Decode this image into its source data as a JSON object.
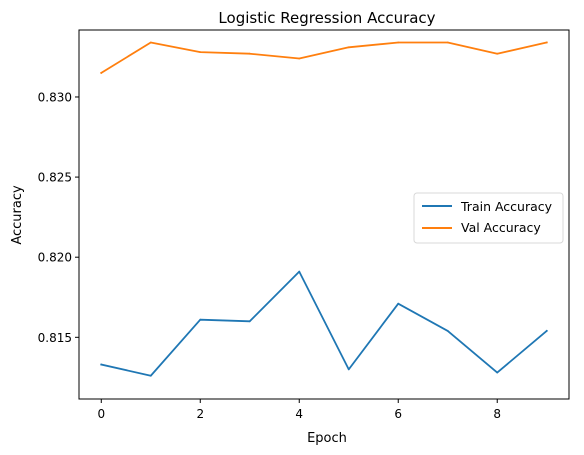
{
  "chart_data": {
    "type": "line",
    "title": "Logistic Regression Accuracy",
    "xlabel": "Epoch",
    "ylabel": "Accuracy",
    "x": [
      0,
      1,
      2,
      3,
      4,
      5,
      6,
      7,
      8,
      9
    ],
    "xlim": [
      -0.45,
      9.45
    ],
    "ylim": [
      0.81115,
      0.83418
    ],
    "xticks": [
      0,
      2,
      4,
      6,
      8
    ],
    "xtick_labels": [
      "0",
      "2",
      "4",
      "6",
      "8"
    ],
    "yticks": [
      0.815,
      0.82,
      0.825,
      0.83
    ],
    "ytick_labels": [
      "0.815",
      "0.820",
      "0.825",
      "0.830"
    ],
    "grid": false,
    "legend_position": "center-right",
    "series": [
      {
        "name": "Train Accuracy",
        "color": "#1f77b4",
        "values": [
          0.8133,
          0.8126,
          0.8161,
          0.816,
          0.8191,
          0.813,
          0.8171,
          0.8154,
          0.8128,
          0.8154
        ]
      },
      {
        "name": "Val Accuracy",
        "color": "#ff7f0e",
        "values": [
          0.8315,
          0.8334,
          0.8328,
          0.8327,
          0.8324,
          0.8331,
          0.8334,
          0.8334,
          0.8327,
          0.8334
        ]
      }
    ]
  }
}
